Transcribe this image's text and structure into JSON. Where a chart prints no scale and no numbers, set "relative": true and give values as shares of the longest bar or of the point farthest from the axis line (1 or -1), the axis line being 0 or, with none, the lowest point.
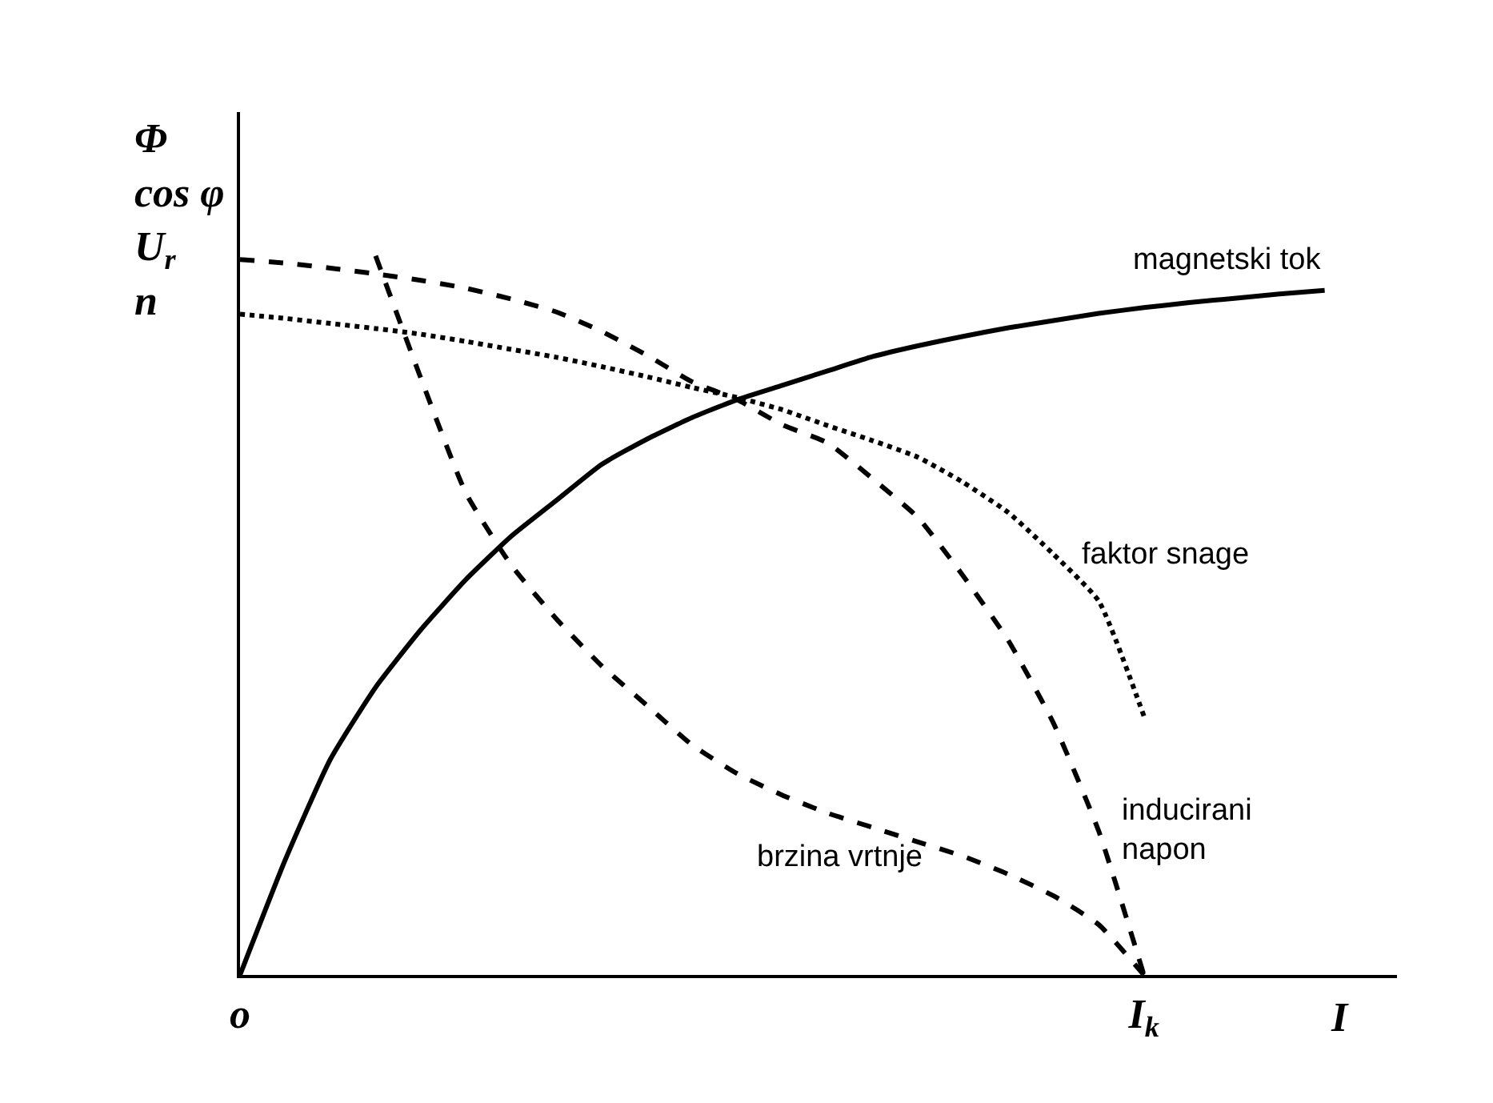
{
  "chart_data": {
    "type": "line",
    "relative": true,
    "xlabel": "I",
    "ylabel": "Φ\ncos φ\nU$_{r}$\nn",
    "categories": [
      "o",
      null,
      null,
      null,
      null,
      null,
      null,
      null,
      null,
      null,
      null,
      null,
      null,
      null,
      null,
      null,
      null,
      null,
      null,
      null,
      "I$_{k}$",
      null,
      null,
      null,
      null,
      null
    ],
    "legend": false,
    "marker": "none",
    "series": [
      {
        "name": "magnetski tok",
        "color": "#000000",
        "line_style": "solid",
        "values": [
          0,
          0.16,
          0.3,
          0.4,
          0.48,
          0.55,
          0.61,
          0.66,
          0.71,
          0.745,
          0.775,
          0.8,
          0.82,
          0.84,
          0.86,
          0.875,
          0.888,
          0.9,
          0.91,
          0.92,
          0.928,
          0.935,
          0.941,
          0.947,
          0.952,
          null
        ]
      },
      {
        "name": "faktor snage",
        "color": "#000000",
        "line_style": "dotted",
        "values": [
          0.919,
          0.913,
          0.906,
          0.899,
          0.891,
          0.881,
          0.87,
          0.859,
          0.846,
          0.832,
          0.817,
          0.803,
          0.786,
          0.764,
          0.743,
          0.72,
          0.685,
          0.643,
          0.585,
          0.52,
          0.36,
          null,
          null,
          null,
          null,
          null
        ]
      },
      {
        "name": "brzina vrtnje",
        "color": "#000000",
        "line_style": "dashed",
        "values": [
          null,
          null,
          null,
          1,
          0.83,
          0.67,
          0.57,
          0.495,
          0.43,
          0.375,
          0.32,
          0.28,
          0.25,
          0.225,
          0.205,
          0.185,
          0.165,
          0.14,
          0.11,
          0.07,
          0,
          null,
          null,
          null,
          null,
          null
        ]
      },
      {
        "name": "inducirani\nnapon",
        "color": "#000000",
        "line_style": "dashed",
        "values": [
          0.995,
          0.99,
          0.983,
          0.975,
          0.966,
          0.955,
          0.94,
          0.922,
          0.895,
          0.862,
          0.825,
          0.8,
          0.765,
          0.74,
          0.69,
          0.636,
          0.555,
          0.465,
          0.35,
          0.2,
          0,
          null,
          null,
          null,
          null,
          null
        ]
      }
    ]
  }
}
